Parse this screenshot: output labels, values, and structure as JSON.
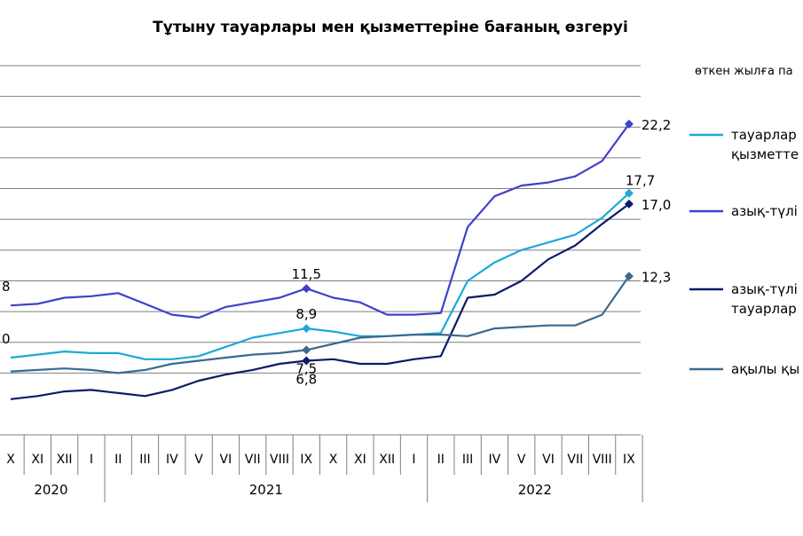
{
  "chart_data": {
    "type": "line",
    "title": "Тұтыну тауарлары мен қызметтеріне бағаның өзгеруі",
    "unit_note": "өткен жылға па",
    "ylim": [
      4,
      26
    ],
    "grid": true,
    "legend_position": "right",
    "categories": [
      "X",
      "XI",
      "XII",
      "I",
      "II",
      "III",
      "IV",
      "V",
      "VI",
      "VII",
      "VIII",
      "IX",
      "X",
      "XI",
      "XII",
      "I",
      "II",
      "III",
      "IV",
      "V",
      "VI",
      "VII",
      "VIII",
      "IX"
    ],
    "years": [
      {
        "label": "2020",
        "from": 0,
        "to": 3
      },
      {
        "label": "2021",
        "from": 4,
        "to": 15
      },
      {
        "label": "2022",
        "from": 16,
        "to": 23
      }
    ],
    "series": [
      {
        "name": "тауарлар мен қызметте",
        "legend_lines": [
          "тауарлар",
          "қызметте"
        ],
        "color": "#1AAAD8",
        "values": [
          7.0,
          7.2,
          7.4,
          7.3,
          7.3,
          6.9,
          6.9,
          7.1,
          7.7,
          8.3,
          8.6,
          8.9,
          8.7,
          8.4,
          8.4,
          8.5,
          8.6,
          12.0,
          13.2,
          14.0,
          14.5,
          15.0,
          16.1,
          17.7
        ],
        "labels": [
          {
            "index": 11,
            "text": "8,9",
            "pos": "above"
          },
          {
            "index": 23,
            "text": "17,7",
            "pos": "above-right"
          }
        ]
      },
      {
        "name": "азық-түлі",
        "legend_lines": [
          "азық-түлі"
        ],
        "color": "#4040CC",
        "values": [
          10.4,
          10.5,
          10.9,
          11.0,
          11.2,
          10.5,
          9.8,
          9.6,
          10.3,
          10.6,
          10.9,
          11.5,
          10.9,
          10.6,
          9.8,
          9.8,
          9.9,
          15.5,
          17.5,
          18.2,
          18.4,
          18.8,
          19.8,
          22.2
        ],
        "labels": [
          {
            "index": 11,
            "text": "11,5",
            "pos": "above"
          },
          {
            "index": 23,
            "text": "22,2",
            "pos": "right"
          }
        ]
      },
      {
        "name": "азық-түлі тауарлар",
        "legend_lines": [
          "азық-түлі",
          "тауарлар"
        ],
        "color": "#0D1A6B",
        "values": [
          4.3,
          4.5,
          4.8,
          4.9,
          4.7,
          4.5,
          4.9,
          5.5,
          5.9,
          6.2,
          6.6,
          6.8,
          6.9,
          6.6,
          6.6,
          6.9,
          7.1,
          10.9,
          11.1,
          12.0,
          13.4,
          14.3,
          15.7,
          17.0
        ],
        "labels": [
          {
            "index": 11,
            "text": "6,8",
            "pos": "below"
          },
          {
            "index": 23,
            "text": "17,0",
            "pos": "right"
          }
        ]
      },
      {
        "name": "ақылы қы",
        "legend_lines": [
          "ақылы қы"
        ],
        "color": "#3B6A90",
        "values": [
          6.1,
          6.2,
          6.3,
          6.2,
          6.0,
          6.2,
          6.6,
          6.8,
          7.0,
          7.2,
          7.3,
          7.5,
          7.9,
          8.3,
          8.4,
          8.5,
          8.5,
          8.4,
          8.9,
          9.0,
          9.1,
          9.1,
          9.8,
          12.3
        ],
        "labels": [
          {
            "index": 11,
            "text": "7,5",
            "pos": "below"
          },
          {
            "index": 23,
            "text": "12,3",
            "pos": "right"
          }
        ]
      }
    ],
    "left_edge_labels": [
      {
        "series": 1,
        "text": "8"
      },
      {
        "series": 0,
        "text": "0"
      }
    ]
  }
}
